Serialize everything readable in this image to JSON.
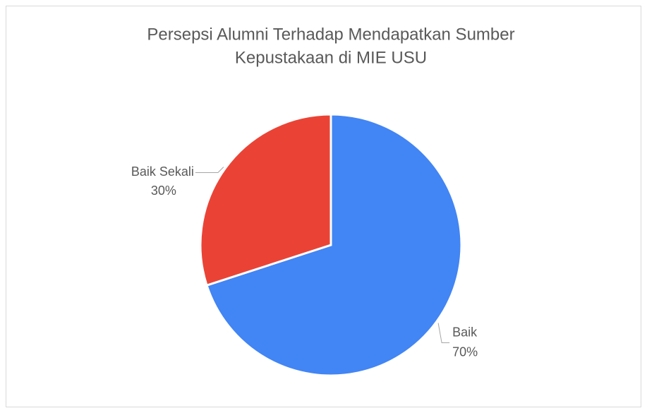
{
  "chart_data": {
    "type": "pie",
    "title": [
      "Persepsi Alumni Terhadap Mendapatkan Sumber",
      "Kepustakaan di MIE USU"
    ],
    "categories": [
      "Baik",
      "Baik Sekali"
    ],
    "values": [
      70,
      30
    ],
    "value_labels": [
      "70%",
      "30%"
    ],
    "colors": [
      "#4285f4",
      "#ea4335"
    ]
  }
}
